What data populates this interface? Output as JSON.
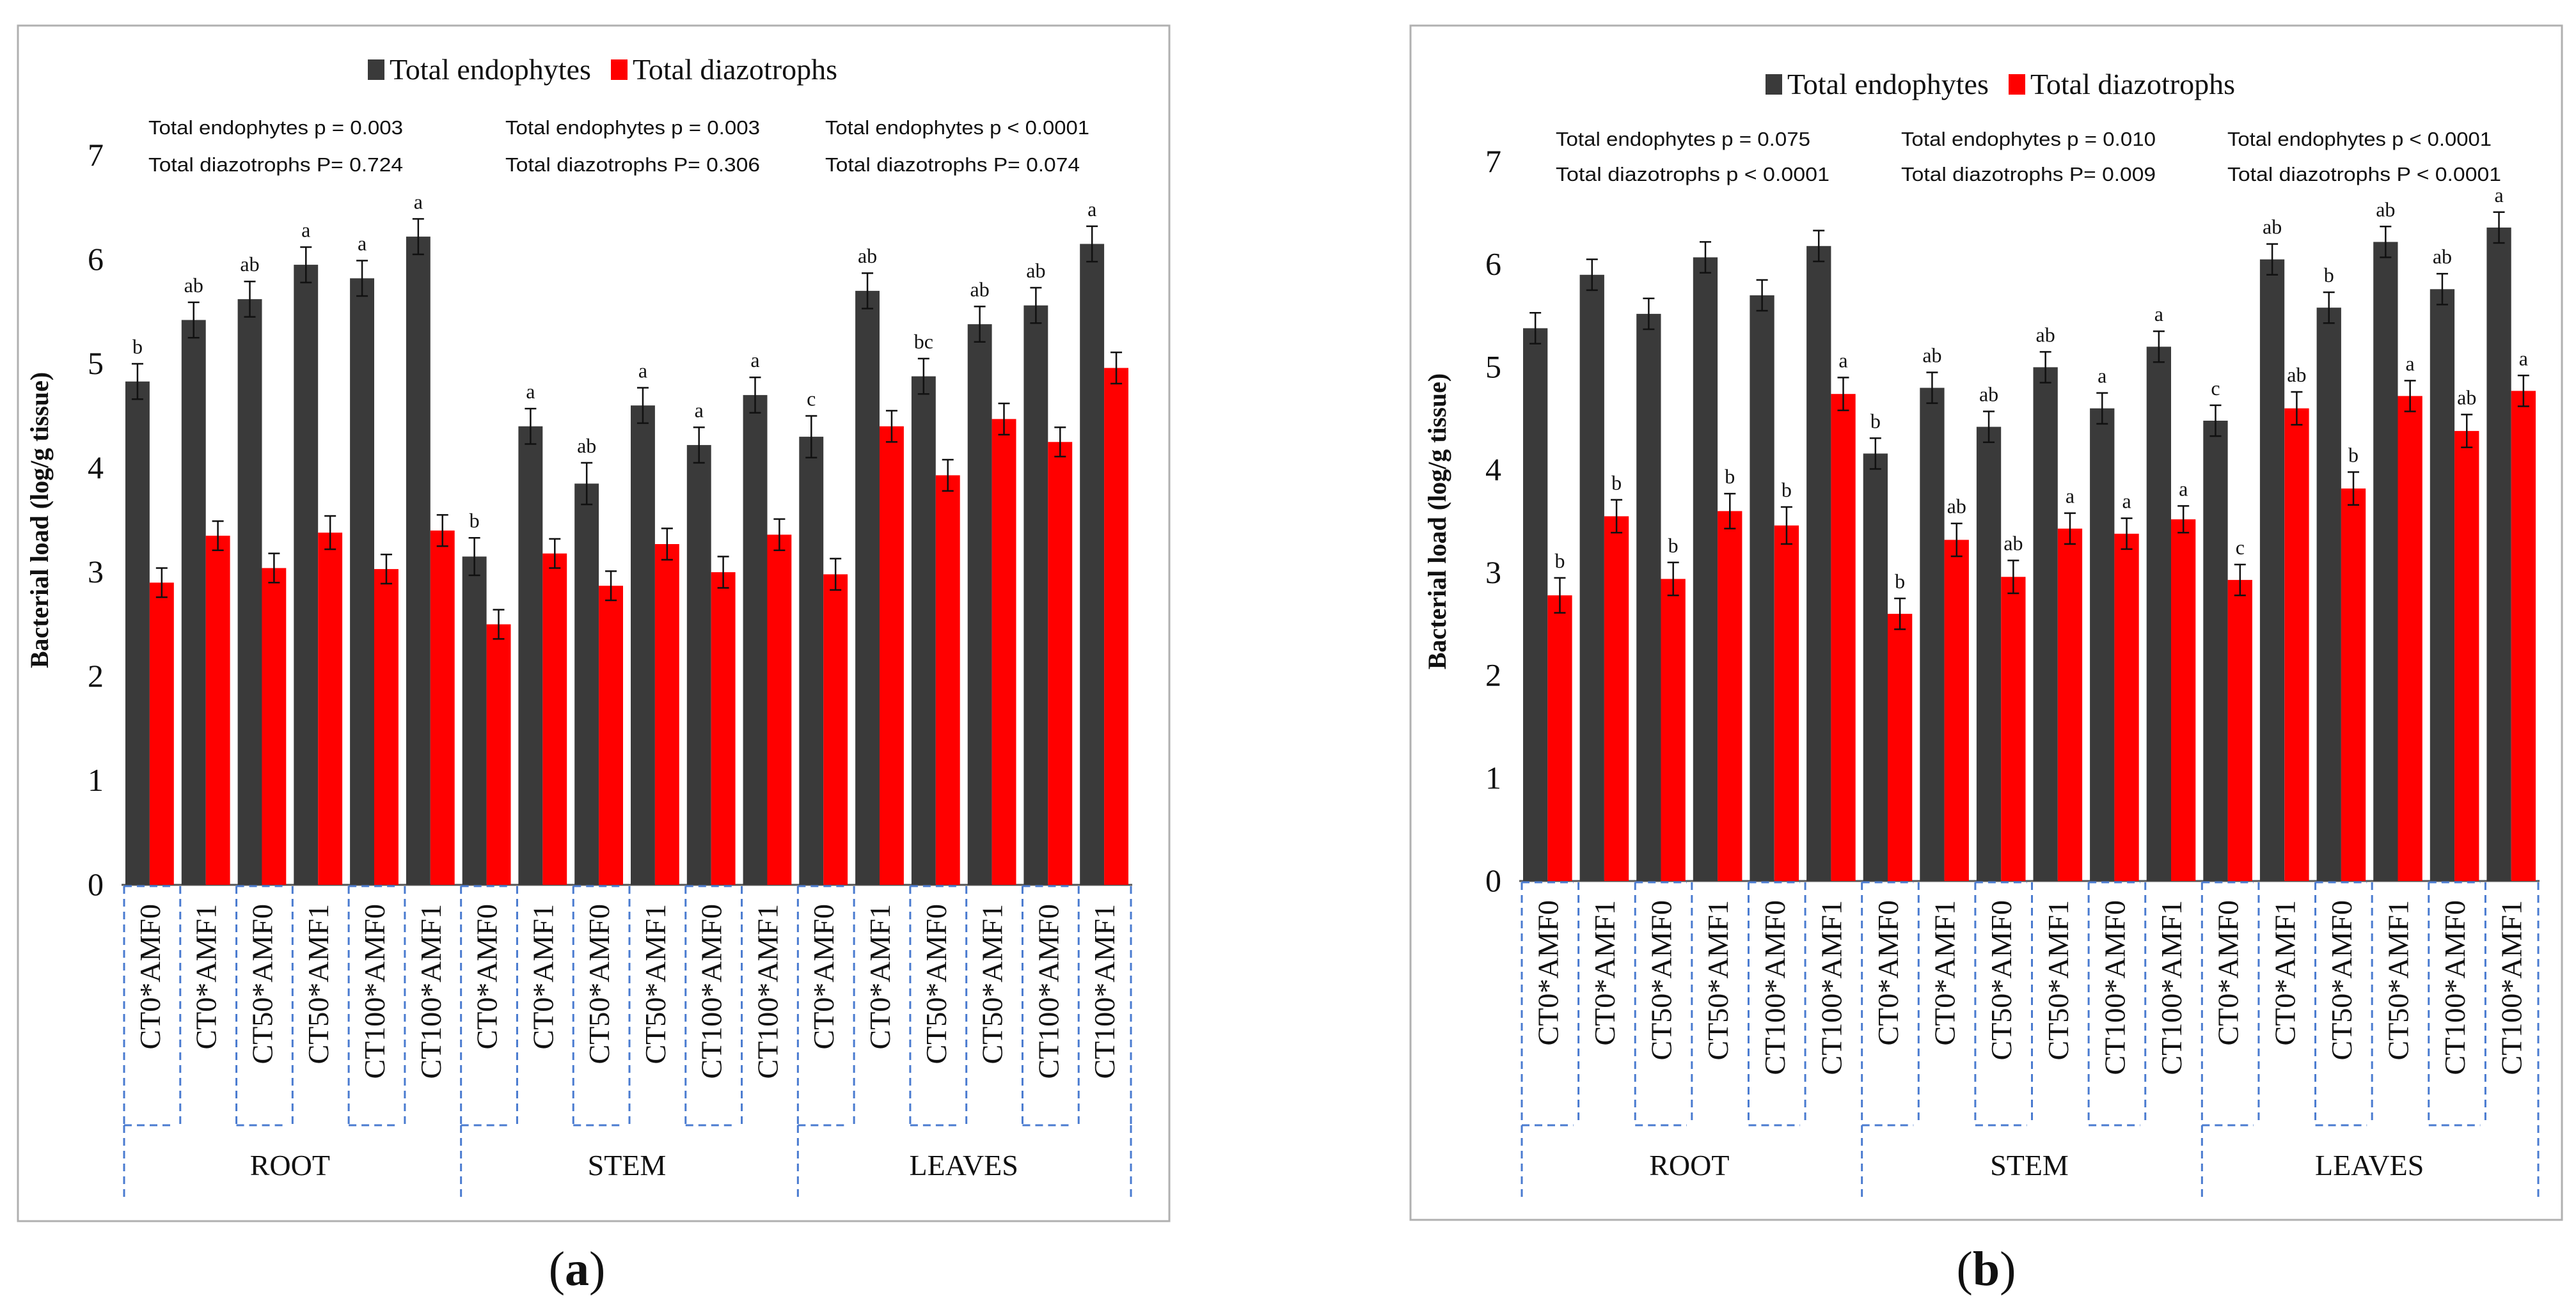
{
  "panels": [
    {
      "caption": "(a)",
      "caption_letter": "a",
      "chart_data": {
        "type": "bar",
        "ylabel": "Bacterial load (log/g tissue)",
        "ylim": [
          0,
          7
        ],
        "yticks": [
          "0",
          "1",
          "2",
          "3",
          "4",
          "5",
          "6",
          "7"
        ],
        "legend": {
          "position": "top-center",
          "entries": [
            "Total endophytes",
            "Total diazotrophs"
          ]
        },
        "colors": {
          "Total endophytes": "#3a3a3a",
          "Total diazotrophs": "#ff0000"
        },
        "groups": [
          {
            "name": "ROOT",
            "stat_lines": [
              "Total endophytes p = 0.003",
              "Total diazotrophs P= 0.724"
            ]
          },
          {
            "name": "STEM",
            "stat_lines": [
              "Total endophytes p = 0.003",
              "Total diazotrophs P= 0.306"
            ]
          },
          {
            "name": "LEAVES",
            "stat_lines": [
              "Total endophytes p < 0.0001",
              "Total diazotrophs P= 0.074"
            ]
          }
        ],
        "categories": [
          "CT0*AMF0",
          "CT0*AMF1",
          "CT50*AMF0",
          "CT50*AMF1",
          "CT100*AMF0",
          "CT100*AMF1",
          "CT0*AMF0",
          "CT0*AMF1",
          "CT50*AMF0",
          "CT50*AMF1",
          "CT100*AMF0",
          "CT100*AMF1",
          "CT0*AMF0",
          "CT0*AMF1",
          "CT50*AMF0",
          "CT50*AMF1",
          "CT100*AMF0",
          "CT100*AMF1"
        ],
        "series": [
          {
            "name": "Total endophytes",
            "values": [
              4.83,
              5.42,
              5.62,
              5.95,
              5.82,
              6.22,
              3.15,
              4.4,
              3.85,
              4.6,
              4.22,
              4.7,
              4.3,
              5.7,
              4.88,
              5.38,
              5.56,
              6.15
            ],
            "errors": [
              0.17,
              0.17,
              0.17,
              0.17,
              0.17,
              0.17,
              0.18,
              0.17,
              0.2,
              0.17,
              0.17,
              0.17,
              0.2,
              0.17,
              0.17,
              0.17,
              0.17,
              0.17
            ],
            "letters": [
              "b",
              "ab",
              "ab",
              "a",
              "a",
              "a",
              "b",
              "a",
              "ab",
              "a",
              "a",
              "a",
              "c",
              "ab",
              "bc",
              "ab",
              "ab",
              "a"
            ]
          },
          {
            "name": "Total diazotrophs",
            "values": [
              2.9,
              3.35,
              3.04,
              3.38,
              3.03,
              3.4,
              2.5,
              3.18,
              2.87,
              3.27,
              3.0,
              3.36,
              2.98,
              4.4,
              3.93,
              4.47,
              4.25,
              4.96
            ],
            "errors": [
              0.14,
              0.14,
              0.14,
              0.16,
              0.14,
              0.15,
              0.14,
              0.14,
              0.14,
              0.15,
              0.15,
              0.15,
              0.15,
              0.15,
              0.15,
              0.15,
              0.14,
              0.15
            ],
            "letters": [
              "",
              "",
              "",
              "",
              "",
              "",
              "",
              "",
              "",
              "",
              "",
              "",
              "",
              "",
              "",
              "",
              "",
              ""
            ]
          }
        ]
      }
    },
    {
      "caption": "(b)",
      "caption_letter": "b",
      "chart_data": {
        "type": "bar",
        "ylabel": "Bacterial load (log/g tissue)",
        "ylim": [
          0,
          7
        ],
        "yticks": [
          "0",
          "1",
          "2",
          "3",
          "4",
          "5",
          "6",
          "7"
        ],
        "legend": {
          "position": "top-center",
          "entries": [
            "Total endophytes",
            "Total diazotrophs"
          ]
        },
        "colors": {
          "Total endophytes": "#3a3a3a",
          "Total diazotrophs": "#ff0000"
        },
        "groups": [
          {
            "name": "ROOT",
            "stat_lines": [
              "Total endophytes p = 0.075",
              "Total diazotrophs p < 0.0001"
            ]
          },
          {
            "name": "STEM",
            "stat_lines": [
              "Total endophytes p = 0.010",
              "Total diazotrophs P= 0.009"
            ]
          },
          {
            "name": "LEAVES",
            "stat_lines": [
              "Total endophytes p < 0.0001",
              "Total diazotrophs P < 0.0001"
            ]
          }
        ],
        "categories": [
          "CT0*AMF0",
          "CT0*AMF1",
          "CT50*AMF0",
          "CT50*AMF1",
          "CT100*AMF0",
          "CT100*AMF1",
          "CT0*AMF0",
          "CT0*AMF1",
          "CT50*AMF0",
          "CT50*AMF1",
          "CT100*AMF0",
          "CT100*AMF1",
          "CT0*AMF0",
          "CT0*AMF1",
          "CT50*AMF0",
          "CT50*AMF1",
          "CT100*AMF0",
          "CT100*AMF1"
        ],
        "series": [
          {
            "name": "Total endophytes",
            "values": [
              5.38,
              5.9,
              5.52,
              6.07,
              5.7,
              6.18,
              4.16,
              4.8,
              4.42,
              5.0,
              4.6,
              5.2,
              4.48,
              6.05,
              5.58,
              6.22,
              5.76,
              6.36
            ],
            "errors": [
              0.15,
              0.15,
              0.15,
              0.15,
              0.15,
              0.15,
              0.15,
              0.15,
              0.15,
              0.15,
              0.15,
              0.15,
              0.15,
              0.15,
              0.15,
              0.15,
              0.15,
              0.15
            ],
            "letters": [
              "",
              "",
              "",
              "",
              "",
              "",
              "b",
              "ab",
              "ab",
              "ab",
              "a",
              "a",
              "c",
              "ab",
              "b",
              "ab",
              "ab",
              "a"
            ]
          },
          {
            "name": "Total diazotrophs",
            "values": [
              2.78,
              3.55,
              2.94,
              3.6,
              3.46,
              4.74,
              2.6,
              3.32,
              2.96,
              3.43,
              3.38,
              3.52,
              2.93,
              4.6,
              3.82,
              4.72,
              4.38,
              4.77
            ],
            "errors": [
              0.17,
              0.16,
              0.16,
              0.17,
              0.18,
              0.16,
              0.15,
              0.16,
              0.16,
              0.15,
              0.15,
              0.13,
              0.15,
              0.16,
              0.16,
              0.15,
              0.16,
              0.15
            ],
            "letters": [
              "b",
              "b",
              "b",
              "b",
              "b",
              "a",
              "b",
              "ab",
              "ab",
              "a",
              "a",
              "a",
              "c",
              "ab",
              "b",
              "a",
              "ab",
              "a"
            ]
          }
        ]
      }
    }
  ]
}
